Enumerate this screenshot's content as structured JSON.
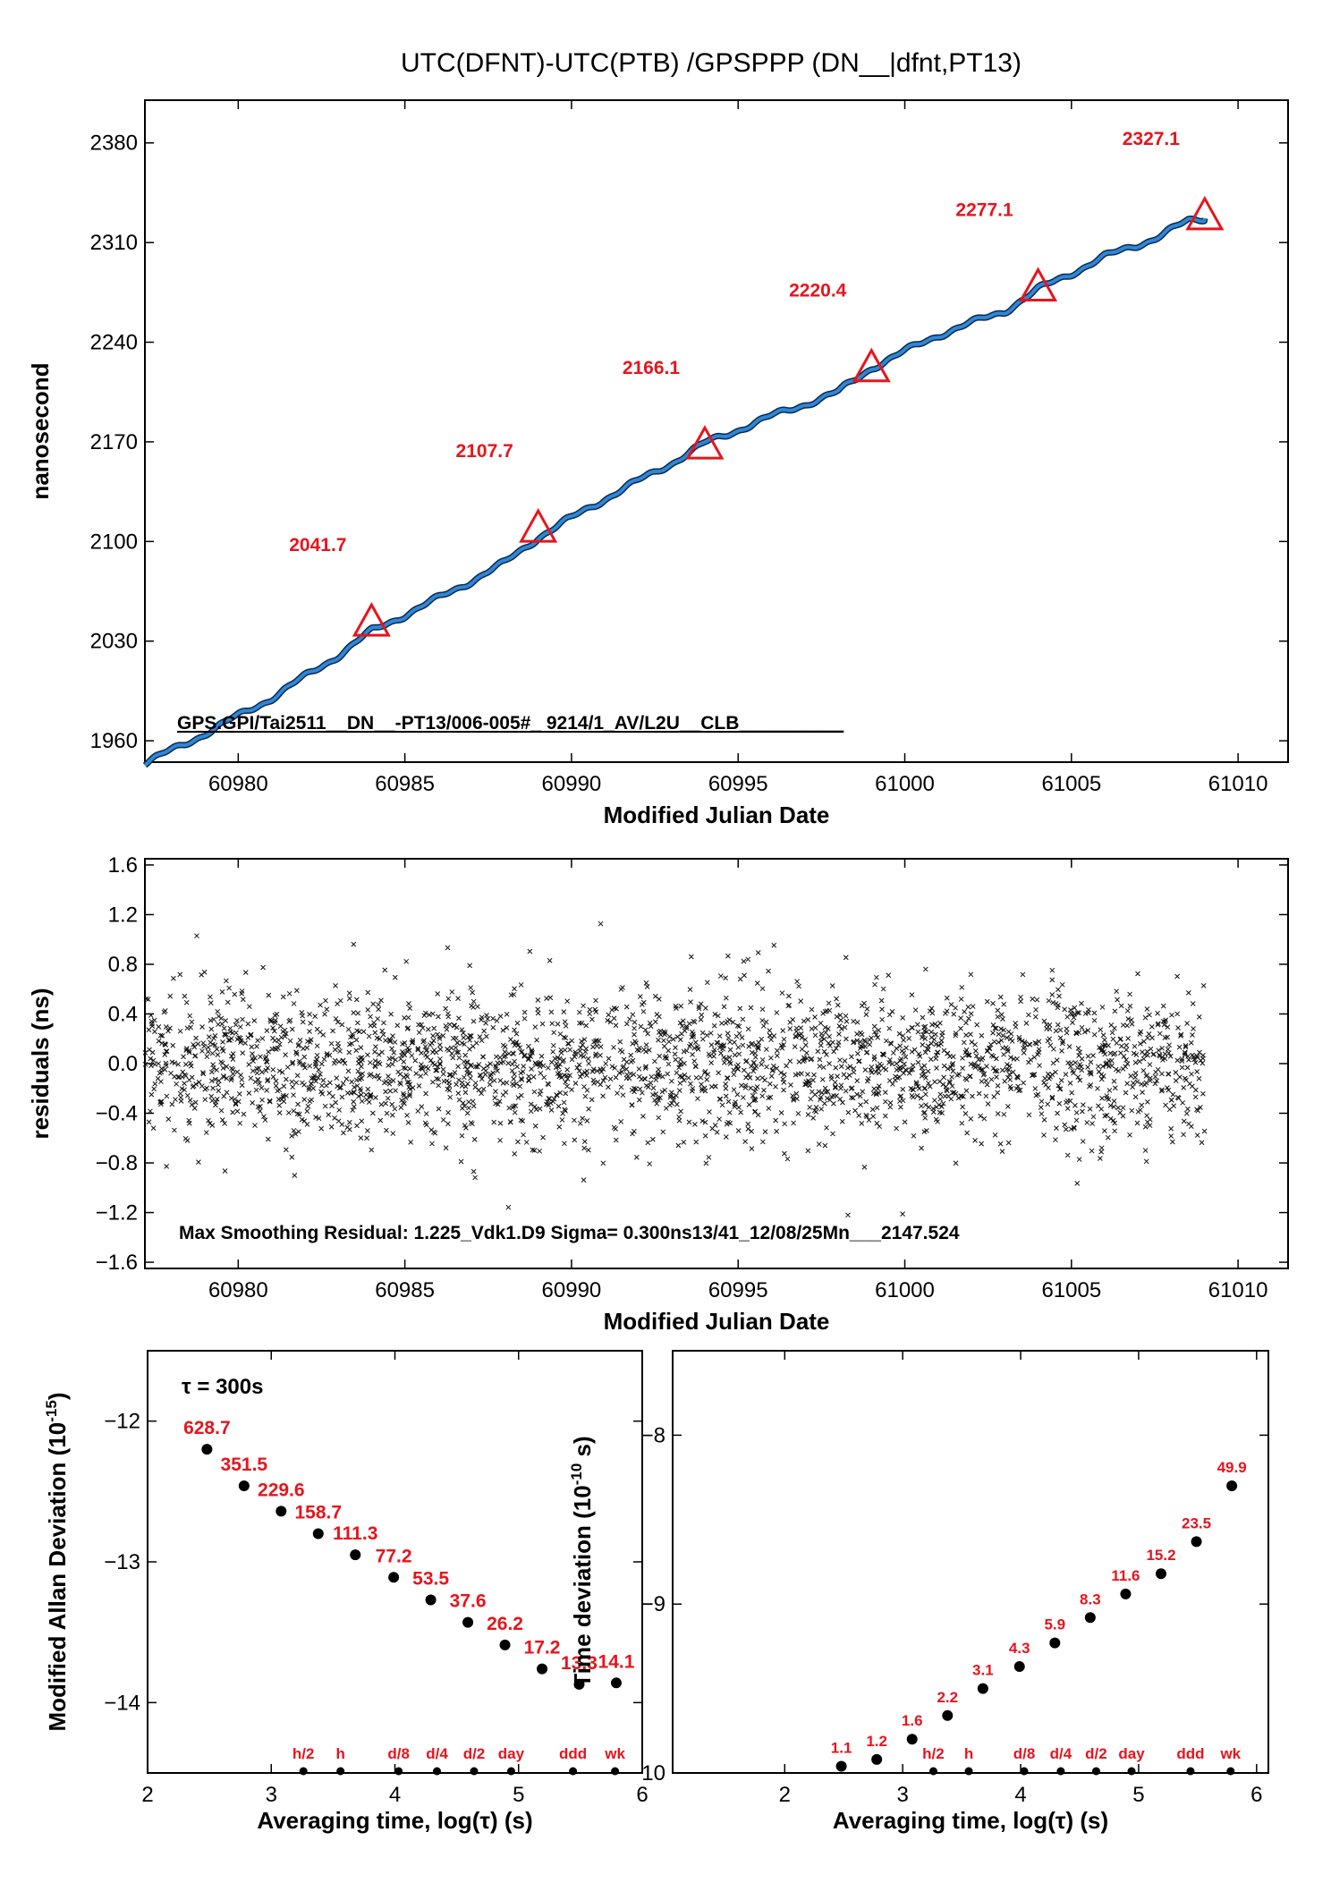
{
  "title": "UTC(DFNT)-UTC(PTB)  /GPSPPP  (DN__|dfnt,PT13)",
  "colors": {
    "trace": "#2f86d6",
    "marker": "#e8141c",
    "axis": "#000000"
  },
  "chart_data": [
    {
      "type": "line",
      "name": "top",
      "xlabel": "Modified Julian Date",
      "ylabel": "nanosecond",
      "xlim": [
        60977.2,
        61011.5
      ],
      "ylim": [
        1945,
        2410
      ],
      "xticks": [
        60980,
        60985,
        60990,
        60995,
        61000,
        61005,
        61010
      ],
      "yticks": [
        1960,
        2030,
        2100,
        2170,
        2240,
        2310,
        2380
      ],
      "x_line": [
        60977.2,
        60979,
        60981,
        60983,
        60984,
        60986,
        60988,
        60989,
        60991,
        60993,
        60994,
        60996,
        60998,
        60999,
        61001,
        61003,
        61004,
        61006,
        61007.5,
        61008.5,
        61009
      ],
      "y_line": [
        1944,
        1965,
        1990,
        2020,
        2037,
        2060,
        2085,
        2103,
        2130,
        2155,
        2169,
        2188,
        2205,
        2222,
        2245,
        2262,
        2277,
        2300,
        2313,
        2325,
        2327
      ],
      "markers": [
        {
          "x": 60984,
          "y": 2041.7,
          "label": "2041.7"
        },
        {
          "x": 60989,
          "y": 2107.7,
          "label": "2107.7"
        },
        {
          "x": 60994,
          "y": 2166.1,
          "label": "2166.1"
        },
        {
          "x": 60999,
          "y": 2220.4,
          "label": "2220.4"
        },
        {
          "x": 61004,
          "y": 2277.1,
          "label": "2277.1"
        },
        {
          "x": 61009,
          "y": 2327.1,
          "label": "2327.1"
        }
      ],
      "annotation": "GPS.GPI/Tai2511__DN__-PT13/006-005#_  9214/1_AV/L2U__CLB__________"
    },
    {
      "type": "scatter",
      "name": "middle",
      "xlabel": "Modified Julian Date",
      "ylabel": "residuals (ns)",
      "xlim": [
        60977.2,
        61011.5
      ],
      "ylim": [
        -1.65,
        1.65
      ],
      "xticks": [
        60980,
        60985,
        60990,
        60995,
        61000,
        61005,
        61010
      ],
      "yticks": [
        -1.6,
        -1.2,
        -0.8,
        -0.4,
        0.0,
        0.4,
        0.8,
        1.2,
        1.6
      ],
      "yticklabels": [
        "−1.6",
        "−1.2",
        "−0.8",
        "−0.4",
        "0.0",
        "0.4",
        "0.8",
        "1.2",
        "1.6"
      ],
      "data_xrange": [
        60977.2,
        61009
      ],
      "sigma_ns": 0.3,
      "points_n": 2600,
      "annotation": "Max Smoothing Residual: 1.225_Vdk1.D9  Sigma= 0.300ns13/41_12/08/25Mn___2147.524"
    },
    {
      "type": "scatter",
      "name": "mdev",
      "xlabel": "Averaging time, log(τ) (s)",
      "ylabel": "Modified Allan Deviation (10",
      "ylabel_sup": "-15",
      "ylabel_tail": ")",
      "xlim": [
        2,
        6
      ],
      "ylim": [
        -14.5,
        -11.5
      ],
      "xticks": [
        2,
        3,
        4,
        5,
        6
      ],
      "yticks": [
        -14,
        -13,
        -12
      ],
      "yticklabels": [
        "−14",
        "−13",
        "−12"
      ],
      "tau_note": "τ = 300s",
      "x": [
        2.48,
        2.78,
        3.08,
        3.38,
        3.68,
        3.99,
        4.29,
        4.59,
        4.89,
        5.19,
        5.49,
        5.79
      ],
      "y": [
        -12.2,
        -12.46,
        -12.64,
        -12.8,
        -12.95,
        -13.11,
        -13.27,
        -13.43,
        -13.59,
        -13.76,
        -13.87,
        -13.86
      ],
      "labels": [
        "628.7",
        "351.5",
        "229.6",
        "158.7",
        "111.3",
        "77.2",
        "53.5",
        "37.6",
        "26.2",
        "17.2",
        "13.3",
        "14.1"
      ],
      "bottom_x": [
        3.26,
        3.56,
        4.03,
        4.34,
        4.64,
        4.94,
        5.44,
        5.78
      ],
      "bottom_labels": [
        "h/2",
        "h",
        "d/8",
        "d/4",
        "d/2",
        "day",
        "ddd",
        "wk"
      ]
    },
    {
      "type": "scatter",
      "name": "tdev",
      "xlabel": "Averaging time, log(τ) (s)",
      "ylabel": "Time deviation (10",
      "ylabel_sup": "-10",
      "ylabel_tail": " s)",
      "xlim": [
        1.05,
        6.1
      ],
      "ylim": [
        -10.0,
        -7.5
      ],
      "xticks": [
        2,
        3,
        4,
        5,
        6
      ],
      "yticks": [
        -10,
        -9,
        -8
      ],
      "yticklabels": [
        "−10",
        "−9",
        "−8"
      ],
      "x": [
        2.48,
        2.78,
        3.08,
        3.38,
        3.68,
        3.99,
        4.29,
        4.59,
        4.89,
        5.19,
        5.49,
        5.79
      ],
      "y": [
        -9.96,
        -9.92,
        -9.8,
        -9.66,
        -9.5,
        -9.37,
        -9.23,
        -9.08,
        -8.94,
        -8.82,
        -8.63,
        -8.3
      ],
      "labels": [
        "1.1",
        "1.2",
        "1.6",
        "2.2",
        "3.1",
        "4.3",
        "5.9",
        "8.3",
        "11.6",
        "15.2",
        "23.5",
        "49.9"
      ],
      "bottom_x": [
        3.26,
        3.56,
        4.03,
        4.34,
        4.64,
        4.94,
        5.44,
        5.78
      ],
      "bottom_labels": [
        "h/2",
        "h",
        "d/8",
        "d/4",
        "d/2",
        "day",
        "ddd",
        "wk"
      ]
    }
  ]
}
